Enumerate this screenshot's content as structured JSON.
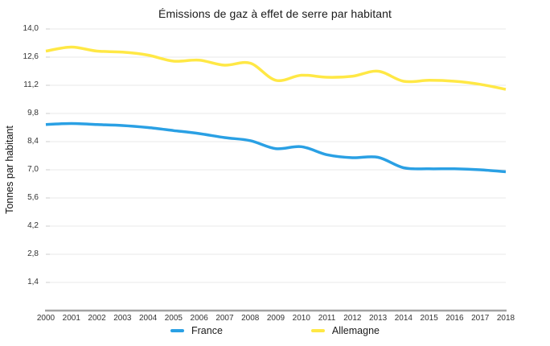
{
  "chart_data": {
    "type": "line",
    "title": "Émissions de gaz à effet de serre par habitant",
    "xlabel": "",
    "ylabel": "Tonnes par habitant",
    "x": [
      2000,
      2001,
      2002,
      2003,
      2004,
      2005,
      2006,
      2007,
      2008,
      2009,
      2010,
      2011,
      2012,
      2013,
      2014,
      2015,
      2016,
      2017,
      2018
    ],
    "series": [
      {
        "name": "France",
        "color": "#2AA0E4",
        "values": [
          9.25,
          9.3,
          9.25,
          9.2,
          9.1,
          8.95,
          8.8,
          8.6,
          8.45,
          8.05,
          8.15,
          7.75,
          7.6,
          7.62,
          7.1,
          7.05,
          7.05,
          7.0,
          6.9
        ]
      },
      {
        "name": "Allemagne",
        "color": "#FFE845",
        "values": [
          12.9,
          13.1,
          12.9,
          12.85,
          12.7,
          12.4,
          12.45,
          12.2,
          12.3,
          11.45,
          11.7,
          11.6,
          11.65,
          11.9,
          11.4,
          11.45,
          11.4,
          11.25,
          11.0
        ]
      }
    ],
    "ylim": [
      0,
      14
    ],
    "ytick_step": 1.4,
    "ytick_labels": [
      "1,4",
      "2,8",
      "4,2",
      "5,6",
      "7,0",
      "8,4",
      "9,8",
      "11,2",
      "12,6",
      "14,0"
    ],
    "decimal_separator": ",",
    "grid": true,
    "legend_position": "bottom",
    "colors": {
      "gridline": "#e8e8e8",
      "axis_line": "#a3a3a3",
      "tick_text": "#333333",
      "title_text": "#1a1a1a"
    }
  }
}
